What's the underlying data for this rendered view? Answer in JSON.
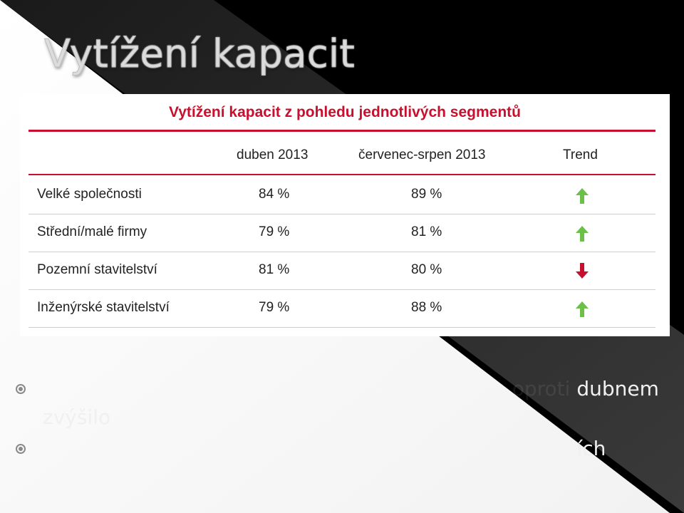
{
  "slide": {
    "title": "Vytížení kapacit"
  },
  "table": {
    "title": "Vytížení kapacit z pohledu jednotlivých segmentů",
    "headers": [
      "",
      "duben 2013",
      "červenec-srpen 2013",
      "Trend"
    ],
    "rows": [
      {
        "segment": "Velké společnosti",
        "apr": "84 %",
        "julaug": "89 %",
        "trend": "up"
      },
      {
        "segment": "Střední/malé firmy",
        "apr": "79 %",
        "julaug": "81 %",
        "trend": "up"
      },
      {
        "segment": "Pozemní stavitelství",
        "apr": "81 %",
        "julaug": "80 %",
        "trend": "down"
      },
      {
        "segment": "Inženýrské stavitelství",
        "apr": "79 %",
        "julaug": "88 %",
        "trend": "up"
      }
    ]
  },
  "bullets": [
    {
      "visible_text": "dubnem zvýšilo"
    },
    {
      "visible_text": "ích"
    }
  ],
  "colors": {
    "accent_red": "#c8102e",
    "trend_up": "#6cc04a",
    "trend_down": "#c8102e"
  }
}
